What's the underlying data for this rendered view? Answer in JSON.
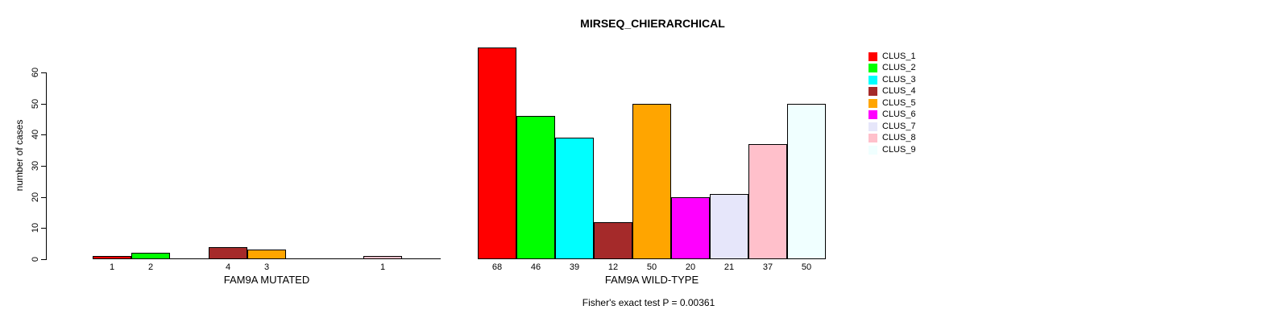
{
  "title": "MIRSEQ_CHIERARCHICAL",
  "annotation": "Fisher's exact test P = 0.00361",
  "legend": [
    {
      "label": "CLUS_1",
      "color": "#FF0000"
    },
    {
      "label": "CLUS_2",
      "color": "#00FF00"
    },
    {
      "label": "CLUS_3",
      "color": "#00FFFF"
    },
    {
      "label": "CLUS_4",
      "color": "#A52A2A"
    },
    {
      "label": "CLUS_5",
      "color": "#FFA500"
    },
    {
      "label": "CLUS_6",
      "color": "#FF00FF"
    },
    {
      "label": "CLUS_7",
      "color": "#E6E6FA"
    },
    {
      "label": "CLUS_8",
      "color": "#FFC0CB"
    },
    {
      "label": "CLUS_9",
      "color": "#F0FFFF"
    }
  ],
  "chart_data": [
    {
      "type": "bar",
      "title": "MIRSEQ_CHIERARCHICAL",
      "xlabel": "FAM9A MUTATED",
      "ylabel": "number of cases",
      "categories": [
        "CLUS_1",
        "CLUS_2",
        "CLUS_3",
        "CLUS_4",
        "CLUS_5",
        "CLUS_6",
        "CLUS_7",
        "CLUS_8",
        "CLUS_9"
      ],
      "values": [
        1,
        2,
        0,
        4,
        3,
        0,
        0,
        1,
        0
      ],
      "bar_labels": [
        "1",
        "2",
        "",
        "4",
        "3",
        "",
        "",
        "1",
        ""
      ],
      "colors": [
        "#FF0000",
        "#00FF00",
        "#00FFFF",
        "#A52A2A",
        "#FFA500",
        "#FF00FF",
        "#E6E6FA",
        "#FFC0CB",
        "#F0FFFF"
      ],
      "ylim": [
        0,
        68
      ],
      "yticks": [
        0,
        10,
        20,
        30,
        40,
        50,
        60
      ],
      "grid": false,
      "legend_position": "right"
    },
    {
      "type": "bar",
      "title": "MIRSEQ_CHIERARCHICAL",
      "xlabel": "FAM9A WILD-TYPE",
      "ylabel": "number of cases",
      "categories": [
        "CLUS_1",
        "CLUS_2",
        "CLUS_3",
        "CLUS_4",
        "CLUS_5",
        "CLUS_6",
        "CLUS_7",
        "CLUS_8",
        "CLUS_9"
      ],
      "values": [
        68,
        46,
        39,
        12,
        50,
        20,
        21,
        37,
        50
      ],
      "bar_labels": [
        "68",
        "46",
        "39",
        "12",
        "50",
        "20",
        "21",
        "37",
        "50"
      ],
      "colors": [
        "#FF0000",
        "#00FF00",
        "#00FFFF",
        "#A52A2A",
        "#FFA500",
        "#FF00FF",
        "#E6E6FA",
        "#FFC0CB",
        "#F0FFFF"
      ],
      "ylim": [
        0,
        68
      ],
      "yticks": [
        0,
        10,
        20,
        30,
        40,
        50,
        60
      ],
      "grid": false,
      "legend_position": "right"
    }
  ]
}
